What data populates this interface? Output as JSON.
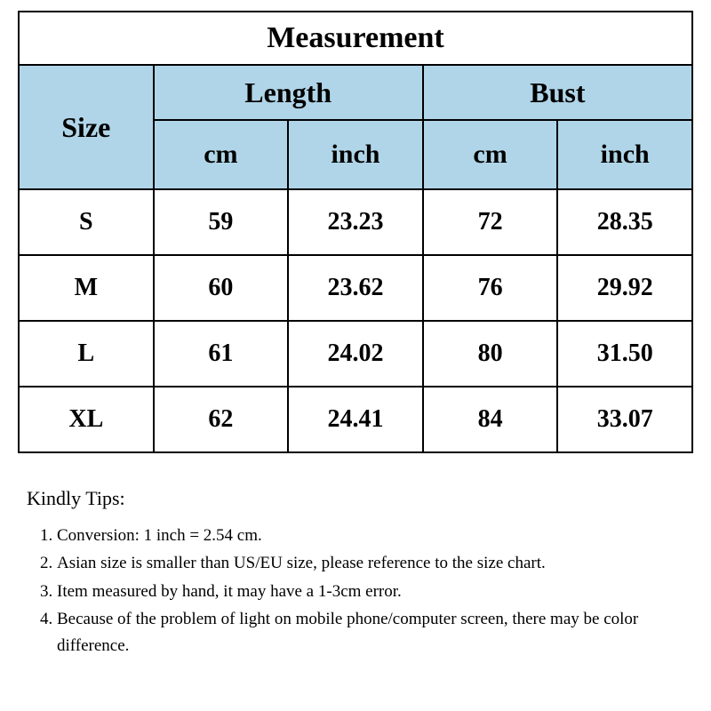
{
  "table": {
    "title": "Measurement",
    "size_header": "Size",
    "groups": [
      "Length",
      "Bust"
    ],
    "units": [
      "cm",
      "inch",
      "cm",
      "inch"
    ],
    "rows": [
      {
        "size": "S",
        "values": [
          "59",
          "23.23",
          "72",
          "28.35"
        ]
      },
      {
        "size": "M",
        "values": [
          "60",
          "23.62",
          "76",
          "29.92"
        ]
      },
      {
        "size": "L",
        "values": [
          "61",
          "24.02",
          "80",
          "31.50"
        ]
      },
      {
        "size": "XL",
        "values": [
          "62",
          "24.41",
          "84",
          "33.07"
        ]
      }
    ],
    "header_bg": "#b0d5e8",
    "border_color": "#000000",
    "title_fontsize": 34,
    "header_fontsize": 32,
    "data_fontsize": 28
  },
  "tips": {
    "heading": "Kindly Tips:",
    "items": [
      "Conversion: 1 inch = 2.54 cm.",
      "Asian size is smaller than US/EU size, please reference to the size chart.",
      "Item measured by hand, it may have a 1-3cm error.",
      "Because of the problem of light on mobile phone/computer screen, there may be color difference."
    ]
  }
}
